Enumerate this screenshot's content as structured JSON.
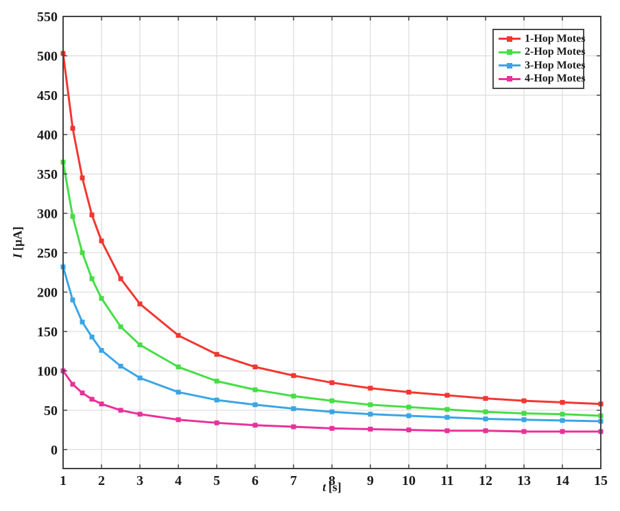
{
  "chart_data": {
    "type": "line",
    "title": "",
    "xlabel": "t [s]",
    "xlabel_var": "t",
    "xlabel_unit": "[s]",
    "ylabel": "I [µA]",
    "ylabel_var": "I",
    "ylabel_unit": "[µA]",
    "xlim": [
      1,
      15
    ],
    "ylim": [
      -24,
      550
    ],
    "xticks": [
      1,
      2,
      3,
      4,
      5,
      6,
      7,
      8,
      9,
      10,
      11,
      12,
      13,
      14,
      15
    ],
    "yticks": [
      0,
      50,
      100,
      150,
      200,
      250,
      300,
      350,
      400,
      450,
      500,
      550
    ],
    "grid": true,
    "legend_position": "top-right",
    "marker": "square",
    "x": [
      1,
      1.25,
      1.5,
      1.75,
      2,
      2.5,
      3,
      4,
      5,
      6,
      7,
      8,
      9,
      10,
      11,
      12,
      13,
      14,
      15
    ],
    "series": [
      {
        "name": "1-Hop Motes",
        "color": "#F23630",
        "values": [
          503,
          408,
          345,
          298,
          265,
          217,
          185,
          145,
          121,
          105,
          94,
          85,
          78,
          73,
          69,
          65,
          62,
          60,
          58
        ]
      },
      {
        "name": "2-Hop Motes",
        "color": "#45DE45",
        "values": [
          365,
          296,
          250,
          217,
          192,
          156,
          133,
          105,
          87,
          76,
          68,
          62,
          57,
          54,
          51,
          48,
          46,
          45,
          43
        ]
      },
      {
        "name": "3-Hop Motes",
        "color": "#3AA5E5",
        "values": [
          232,
          190,
          162,
          143,
          126,
          106,
          91,
          73,
          63,
          57,
          52,
          48,
          45,
          43,
          41,
          39,
          38,
          37,
          36
        ]
      },
      {
        "name": "4-Hop Motes",
        "color": "#E8319A",
        "values": [
          100,
          83,
          72,
          64,
          58,
          50,
          45,
          38,
          34,
          31,
          29,
          27,
          26,
          25,
          24,
          24,
          23,
          23,
          23
        ]
      }
    ],
    "style": {
      "grid_color": "#DCDCDC",
      "axis_color": "#404040",
      "text_color": "#1b1b1b",
      "background": "#FFFFFF"
    }
  }
}
